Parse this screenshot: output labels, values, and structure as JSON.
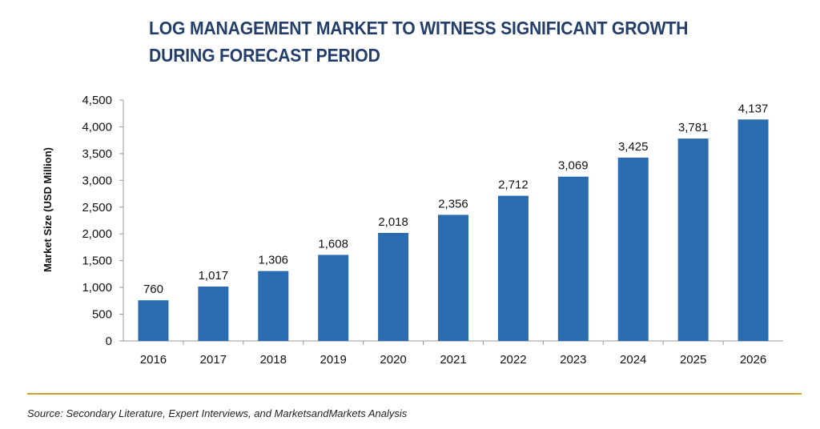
{
  "title": "LOG MANAGEMENT MARKET TO WITNESS SIGNIFICANT GROWTH DURING FORECAST PERIOD",
  "source": "Source: Secondary Literature, Expert Interviews, and MarketsandMarkets Analysis",
  "colors": {
    "title": "#243e6b",
    "bar": "#2b6cb0",
    "divider": "#c9a227",
    "axis": "#999999"
  },
  "chart_data": {
    "type": "bar",
    "title": "LOG MANAGEMENT MARKET TO WITNESS SIGNIFICANT GROWTH DURING FORECAST PERIOD",
    "xlabel": "",
    "ylabel": "Market Size (USD Million)",
    "categories": [
      "2016",
      "2017",
      "2018",
      "2019",
      "2020",
      "2021",
      "2022",
      "2023",
      "2024",
      "2025",
      "2026"
    ],
    "values": [
      760,
      1017,
      1306,
      1608,
      2018,
      2356,
      2712,
      3069,
      3425,
      3781,
      4137
    ],
    "value_labels": [
      "760",
      "1,017",
      "1,306",
      "1,608",
      "2,018",
      "2,356",
      "2,712",
      "3,069",
      "3,425",
      "3,781",
      "4,137"
    ],
    "ylim": [
      0,
      4500
    ],
    "yticks": [
      0,
      500,
      1000,
      1500,
      2000,
      2500,
      3000,
      3500,
      4000,
      4500
    ],
    "ytick_labels": [
      "0",
      "500",
      "1,000",
      "1,500",
      "2,000",
      "2,500",
      "3,000",
      "3,500",
      "4,000",
      "4,500"
    ],
    "grid": false,
    "legend": "none"
  }
}
